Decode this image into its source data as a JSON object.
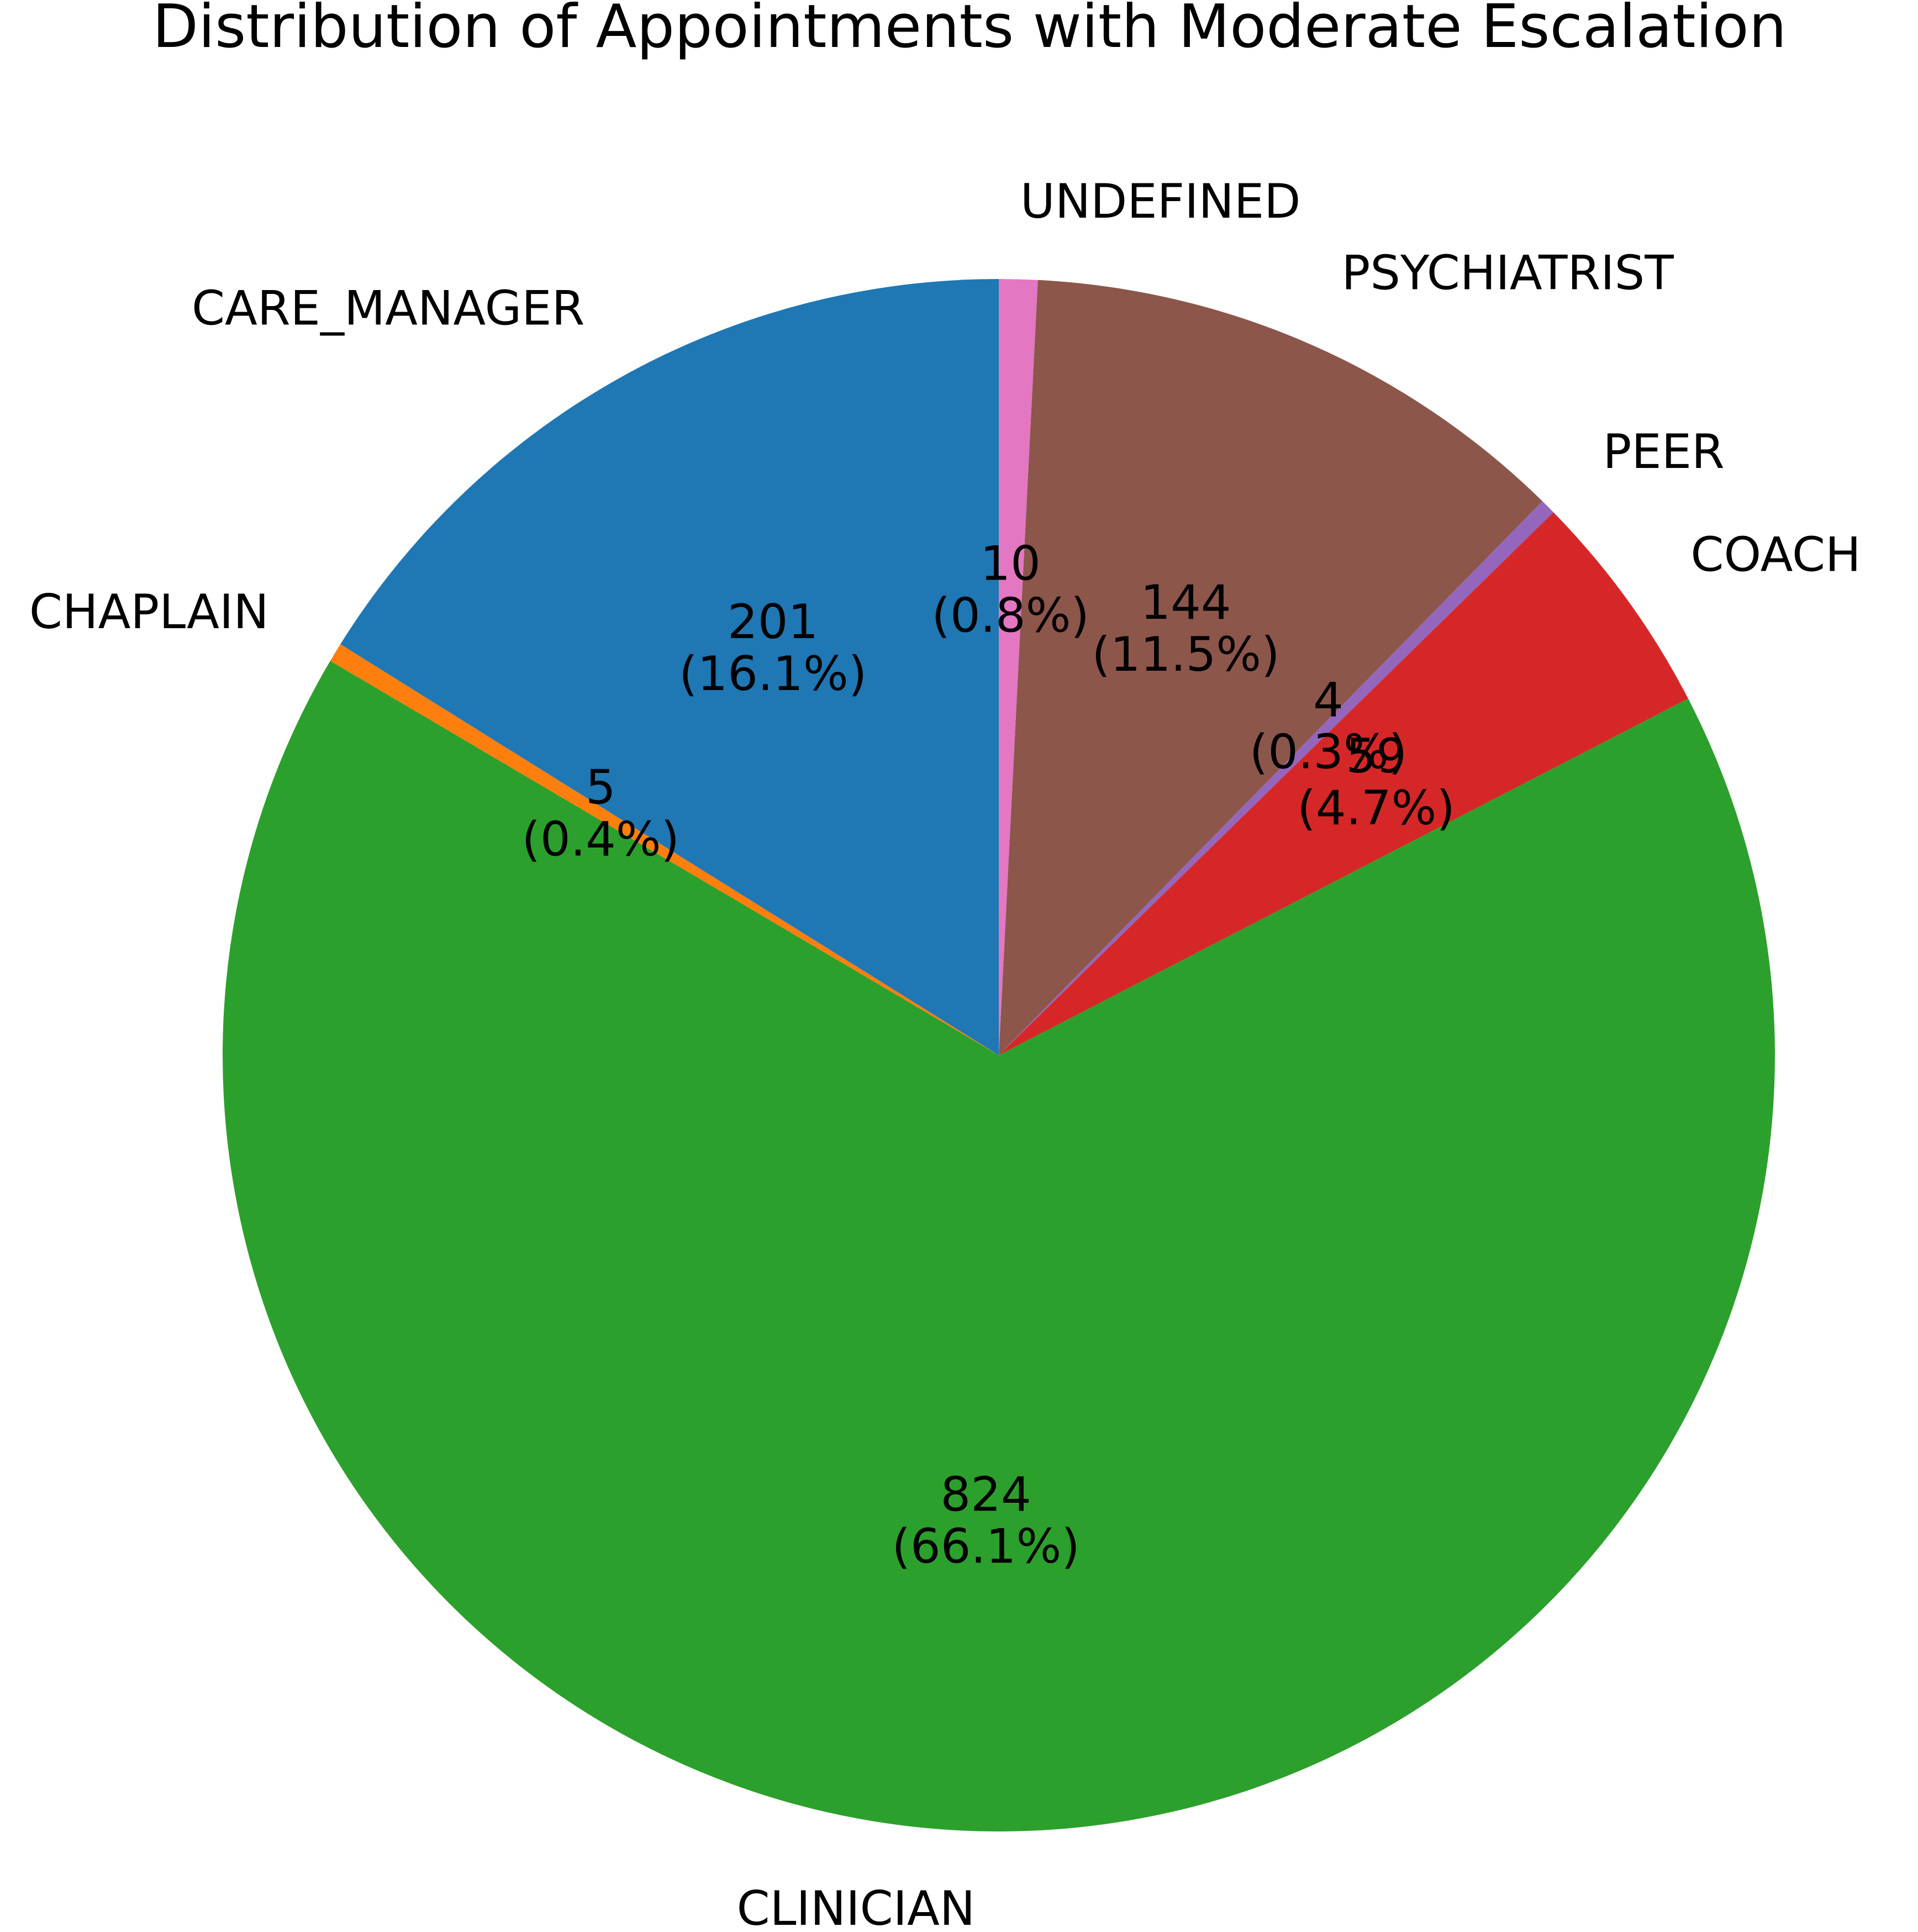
{
  "chart_data": {
    "type": "pie",
    "title": "Distribution of Appointments with Moderate Escalation",
    "start_angle_deg": 90,
    "direction": "counterclockwise",
    "slices": [
      {
        "label": "CARE_MANAGER",
        "value": 201,
        "percent_label": "(16.1%)",
        "color": "#1f77b4"
      },
      {
        "label": "CHAPLAIN",
        "value": 5,
        "percent_label": "(0.4%)",
        "color": "#ff7f0e"
      },
      {
        "label": "CLINICIAN",
        "value": 824,
        "percent_label": "(66.1%)",
        "color": "#2ca02c"
      },
      {
        "label": "COACH",
        "value": 59,
        "percent_label": "(4.7%)",
        "color": "#d62728"
      },
      {
        "label": "PEER",
        "value": 4,
        "percent_label": "(0.3%)",
        "color": "#9467bd"
      },
      {
        "label": "PSYCHIATRIST",
        "value": 144,
        "percent_label": "(11.5%)",
        "color": "#8c564b"
      },
      {
        "label": "UNDEFINED",
        "value": 10,
        "percent_label": "(0.8%)",
        "color": "#e377c2"
      }
    ]
  }
}
